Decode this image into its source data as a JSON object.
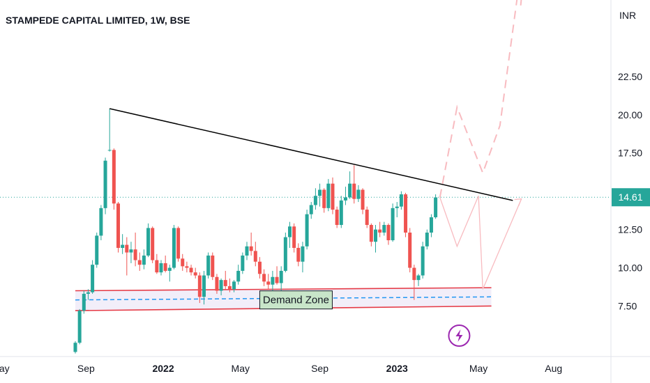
{
  "chart_data": {
    "type": "candlestick",
    "title": "STAMPEDE CAPITAL LIMITED, 1W, BSE",
    "currency": "INR",
    "x_ticks": [
      "May",
      "Sep",
      "2022",
      "May",
      "Sep",
      "2023",
      "May",
      "Aug"
    ],
    "bold_x_ticks": [
      "2022",
      "2023"
    ],
    "y_ticks": [
      "22.50",
      "20.00",
      "17.50",
      "12.50",
      "10.00",
      "7.50"
    ],
    "ylim": [
      4.2,
      27.5
    ],
    "last_price": 14.61,
    "last_price_label": "14.61",
    "colors": {
      "up": "#26a69a",
      "down": "#ef5350",
      "trendline": "#000000",
      "zone_line": "#e53945",
      "zone_fill": "#ede7f6",
      "mid_line": "#2196f3",
      "price_line": "#26a69a",
      "projection": "#f8bbc0",
      "lightning": "#9c27b0"
    },
    "candles": [
      [
        4.5,
        5.2,
        4.4,
        5.1
      ],
      [
        5.1,
        7.3,
        5.0,
        7.2
      ],
      [
        7.2,
        8.5,
        7.0,
        8.3
      ],
      [
        8.3,
        8.6,
        7.9,
        8.4
      ],
      [
        8.4,
        10.5,
        8.3,
        10.2
      ],
      [
        10.2,
        12.3,
        10.0,
        12.1
      ],
      [
        12.1,
        14.1,
        11.8,
        13.9
      ],
      [
        13.9,
        17.2,
        13.5,
        17.0
      ],
      [
        17.7,
        20.4,
        17.6,
        17.7
      ],
      [
        17.7,
        17.8,
        13.8,
        14.2
      ],
      [
        14.2,
        14.3,
        11.0,
        11.3
      ],
      [
        11.3,
        12.2,
        10.9,
        11.5
      ],
      [
        11.5,
        12.0,
        9.5,
        11.0
      ],
      [
        11.0,
        11.7,
        10.3,
        11.2
      ],
      [
        11.2,
        12.3,
        10.1,
        10.5
      ],
      [
        10.5,
        11.0,
        9.8,
        10.2
      ],
      [
        10.2,
        11.2,
        9.9,
        10.8
      ],
      [
        10.8,
        12.9,
        10.7,
        12.6
      ],
      [
        12.6,
        12.7,
        10.3,
        10.5
      ],
      [
        10.5,
        10.9,
        9.6,
        9.7
      ],
      [
        9.7,
        10.5,
        9.5,
        10.3
      ],
      [
        10.3,
        10.8,
        9.7,
        9.8
      ],
      [
        9.8,
        10.2,
        9.1,
        10.0
      ],
      [
        10.0,
        12.8,
        9.9,
        12.6
      ],
      [
        12.6,
        12.7,
        10.4,
        10.6
      ],
      [
        10.6,
        10.9,
        9.8,
        10.1
      ],
      [
        10.1,
        10.4,
        9.7,
        10.0
      ],
      [
        10.0,
        10.2,
        9.5,
        9.7
      ],
      [
        9.7,
        10.0,
        9.3,
        9.5
      ],
      [
        9.5,
        9.7,
        7.7,
        8.1
      ],
      [
        8.1,
        9.8,
        7.6,
        9.5
      ],
      [
        9.5,
        11.0,
        9.3,
        10.8
      ],
      [
        10.8,
        11.0,
        9.2,
        9.4
      ],
      [
        9.4,
        9.6,
        8.3,
        8.5
      ],
      [
        8.5,
        9.3,
        8.2,
        9.2
      ],
      [
        9.2,
        9.8,
        8.6,
        8.8
      ],
      [
        8.8,
        9.3,
        8.4,
        8.6
      ],
      [
        8.6,
        9.2,
        8.4,
        9.1
      ],
      [
        9.1,
        10.2,
        8.9,
        9.8
      ],
      [
        9.8,
        11.0,
        9.6,
        10.8
      ],
      [
        10.8,
        11.7,
        10.5,
        11.4
      ],
      [
        11.4,
        12.3,
        10.8,
        11.1
      ],
      [
        11.1,
        11.7,
        10.1,
        10.4
      ],
      [
        10.4,
        10.7,
        9.3,
        9.6
      ],
      [
        9.6,
        9.9,
        8.8,
        9.1
      ],
      [
        9.1,
        9.6,
        8.6,
        8.9
      ],
      [
        8.9,
        9.8,
        8.5,
        9.4
      ],
      [
        9.4,
        10.1,
        8.9,
        9.0
      ],
      [
        9.0,
        10.1,
        8.5,
        9.8
      ],
      [
        9.8,
        12.3,
        9.7,
        12.0
      ],
      [
        12.0,
        13.0,
        11.3,
        12.7
      ],
      [
        12.7,
        12.9,
        11.0,
        11.3
      ],
      [
        11.3,
        11.6,
        10.1,
        10.4
      ],
      [
        10.4,
        11.7,
        9.7,
        11.4
      ],
      [
        11.4,
        13.8,
        11.2,
        13.5
      ],
      [
        13.5,
        14.3,
        13.2,
        14.1
      ],
      [
        14.1,
        15.2,
        13.8,
        14.7
      ],
      [
        14.7,
        15.5,
        14.0,
        15.1
      ],
      [
        15.1,
        15.2,
        13.6,
        13.9
      ],
      [
        13.9,
        15.8,
        13.7,
        15.5
      ],
      [
        15.5,
        15.9,
        13.5,
        13.8
      ],
      [
        13.8,
        14.0,
        12.6,
        12.8
      ],
      [
        12.8,
        14.7,
        12.6,
        14.4
      ],
      [
        14.4,
        15.3,
        14.1,
        14.6
      ],
      [
        14.6,
        16.3,
        14.5,
        15.5
      ],
      [
        15.5,
        16.7,
        14.2,
        14.5
      ],
      [
        14.5,
        15.4,
        14.3,
        15.1
      ],
      [
        15.1,
        15.2,
        13.5,
        13.8
      ],
      [
        13.8,
        14.0,
        12.6,
        12.8
      ],
      [
        12.8,
        12.9,
        11.4,
        11.7
      ],
      [
        11.7,
        12.8,
        11.0,
        12.5
      ],
      [
        12.5,
        13.0,
        12.0,
        12.3
      ],
      [
        12.3,
        13.0,
        12.1,
        12.8
      ],
      [
        12.8,
        12.9,
        11.5,
        11.8
      ],
      [
        11.8,
        14.2,
        11.7,
        13.9
      ],
      [
        13.9,
        14.3,
        13.3,
        14.0
      ],
      [
        14.0,
        15.0,
        13.8,
        14.8
      ],
      [
        14.8,
        14.9,
        12.0,
        12.3
      ],
      [
        12.3,
        12.6,
        9.7,
        10.0
      ],
      [
        10.0,
        10.2,
        7.9,
        9.2
      ],
      [
        9.2,
        9.6,
        8.8,
        9.5
      ],
      [
        9.5,
        11.7,
        9.3,
        11.4
      ],
      [
        11.4,
        12.5,
        11.2,
        12.3
      ],
      [
        12.3,
        13.5,
        12.0,
        13.3
      ],
      [
        13.3,
        14.8,
        13.2,
        14.6
      ]
    ],
    "trendline": [
      {
        "bar": 8,
        "value": 20.4
      },
      {
        "bar": 102,
        "value": 14.4
      }
    ],
    "demand_zone": {
      "label": "Demand Zone",
      "upper": [
        {
          "bar": 0,
          "value": 8.5
        },
        {
          "bar": 97,
          "value": 8.7
        }
      ],
      "lower": [
        {
          "bar": 0,
          "value": 7.2
        },
        {
          "bar": 97,
          "value": 7.5
        }
      ],
      "mid": [
        {
          "bar": 0,
          "value": 7.9
        },
        {
          "bar": 97,
          "value": 8.1
        }
      ]
    },
    "projection_dashed": [
      {
        "bar": 85,
        "value": 14.6
      },
      {
        "bar": 89,
        "value": 20.5
      },
      {
        "bar": 95,
        "value": 16.2
      },
      {
        "bar": 99,
        "value": 19.3
      },
      {
        "bar": 103,
        "value": 27.6
      }
    ],
    "projection_dashed_arrow": {
      "bar": 104,
      "value": 27.6
    },
    "projection_solid": [
      {
        "bar": 85,
        "value": 14.6
      },
      {
        "bar": 89,
        "value": 11.4
      },
      {
        "bar": 94,
        "value": 14.7
      },
      {
        "bar": 95,
        "value": 8.6
      },
      {
        "bar": 104,
        "value": 14.5
      }
    ]
  }
}
